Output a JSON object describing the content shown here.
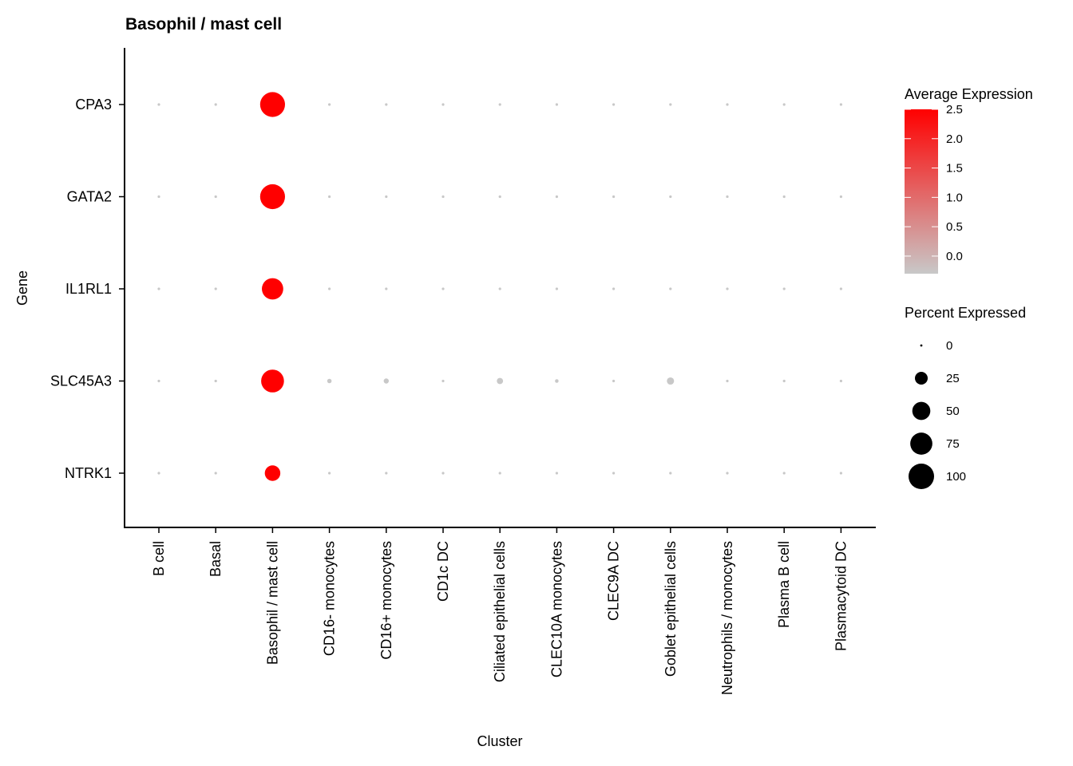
{
  "chart_data": {
    "type": "dotplot",
    "title": "Basophil / mast cell",
    "xlabel": "Cluster",
    "ylabel": "Gene",
    "clusters": [
      "B cell",
      "Basal",
      "Basophil / mast cell",
      "CD16- monocytes",
      "CD16+ monocytes",
      "CD1c DC",
      "Ciliated epithelial cells",
      "CLEC10A monocytes",
      "CLEC9A DC",
      "Goblet epithelial cells",
      "Neutrophils / monocytes",
      "Plasma B cell",
      "Plasmacytoid DC"
    ],
    "genes": [
      "CPA3",
      "GATA2",
      "IL1RL1",
      "SLC45A3",
      "NTRK1"
    ],
    "avg_expression": [
      [
        -0.3,
        -0.3,
        2.5,
        -0.3,
        -0.3,
        -0.3,
        -0.3,
        -0.3,
        -0.3,
        -0.3,
        -0.3,
        -0.3,
        -0.3
      ],
      [
        -0.3,
        -0.3,
        2.5,
        -0.3,
        -0.3,
        -0.3,
        -0.3,
        -0.3,
        -0.3,
        -0.3,
        -0.3,
        -0.3,
        -0.3
      ],
      [
        -0.3,
        -0.3,
        2.5,
        -0.3,
        -0.3,
        -0.3,
        -0.3,
        -0.3,
        -0.3,
        -0.3,
        -0.3,
        -0.3,
        -0.3
      ],
      [
        -0.3,
        -0.3,
        2.5,
        -0.3,
        -0.3,
        -0.3,
        -0.3,
        -0.3,
        -0.3,
        -0.3,
        -0.3,
        -0.3,
        -0.3
      ],
      [
        -0.3,
        -0.3,
        2.5,
        -0.3,
        -0.3,
        -0.3,
        -0.3,
        -0.3,
        -0.3,
        -0.3,
        -0.3,
        -0.3,
        -0.3
      ]
    ],
    "pct_expressed": [
      [
        1,
        1,
        95,
        1,
        1,
        1,
        1,
        1,
        1,
        1,
        1,
        1,
        1
      ],
      [
        1,
        1,
        95,
        1,
        1,
        1,
        1,
        1,
        1,
        1,
        1,
        1,
        1
      ],
      [
        1,
        1,
        70,
        1,
        1,
        1,
        1,
        1,
        1,
        1,
        1,
        1,
        1
      ],
      [
        1,
        1,
        80,
        3,
        4,
        1,
        6,
        2,
        1,
        8,
        1,
        1,
        1
      ],
      [
        1,
        1,
        37,
        1,
        1,
        1,
        1,
        1,
        1,
        1,
        1,
        1,
        1
      ]
    ],
    "color_legend": {
      "title": "Average Expression",
      "ticks": [
        "2.5",
        "2.0",
        "1.5",
        "1.0",
        "0.5",
        "0.0"
      ],
      "tick_values": [
        2.5,
        2.0,
        1.5,
        1.0,
        0.5,
        0.0
      ],
      "range": [
        -0.3,
        2.5
      ],
      "low_color": "#c8c8c8",
      "high_color": "#ff0000"
    },
    "size_legend": {
      "title": "Percent Expressed",
      "labels": [
        "0",
        "25",
        "50",
        "75",
        "100"
      ],
      "values": [
        0,
        25,
        50,
        75,
        100
      ]
    }
  }
}
